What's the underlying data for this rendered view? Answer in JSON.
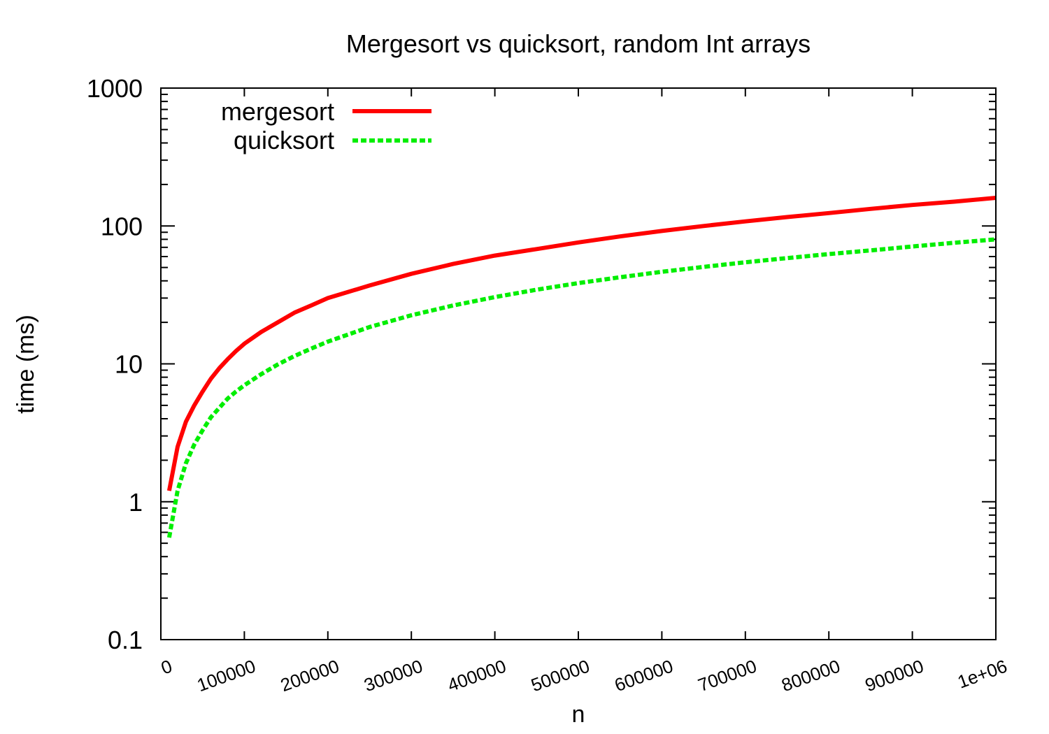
{
  "chart_data": {
    "type": "line",
    "title": "Mergesort vs quicksort, random Int arrays",
    "xlabel": "n",
    "ylabel": "time (ms)",
    "xlim": [
      0,
      1000000
    ],
    "ylim": [
      0.1,
      1000
    ],
    "yscale": "log",
    "x_ticks": [
      "0",
      "100000",
      "200000",
      "300000",
      "400000",
      "500000",
      "600000",
      "700000",
      "800000",
      "900000",
      "1e+06"
    ],
    "y_ticks": [
      "0.1",
      "1",
      "10",
      "100",
      "1000"
    ],
    "legend_position": "top-left",
    "grid": false,
    "x": [
      10000,
      20000,
      30000,
      40000,
      50000,
      60000,
      70000,
      80000,
      90000,
      100000,
      120000,
      140000,
      160000,
      180000,
      200000,
      250000,
      300000,
      350000,
      400000,
      450000,
      500000,
      550000,
      600000,
      650000,
      700000,
      750000,
      800000,
      850000,
      900000,
      950000,
      1000000
    ],
    "series": [
      {
        "name": "mergesort",
        "color": "#ff0000",
        "style": "solid",
        "values": [
          1.2,
          2.5,
          3.8,
          5.0,
          6.3,
          7.8,
          9.3,
          10.8,
          12.4,
          14.0,
          17.0,
          20.0,
          23.5,
          26.5,
          30,
          37,
          45,
          53,
          61,
          68,
          76,
          84,
          92,
          100,
          108,
          116,
          124,
          133,
          142,
          150,
          160
        ]
      },
      {
        "name": "quicksort",
        "color": "#00ee00",
        "style": "dashed",
        "values": [
          0.55,
          1.2,
          1.9,
          2.6,
          3.3,
          4.1,
          4.8,
          5.6,
          6.3,
          7.0,
          8.4,
          9.9,
          11.4,
          12.9,
          14.5,
          18.5,
          22.5,
          26.5,
          30.5,
          34.5,
          38.5,
          42.5,
          46.5,
          50.5,
          54.5,
          58.5,
          62.5,
          66.5,
          71,
          75.5,
          80
        ]
      }
    ]
  },
  "legend": {
    "items": [
      {
        "label": "mergesort"
      },
      {
        "label": "quicksort"
      }
    ]
  }
}
